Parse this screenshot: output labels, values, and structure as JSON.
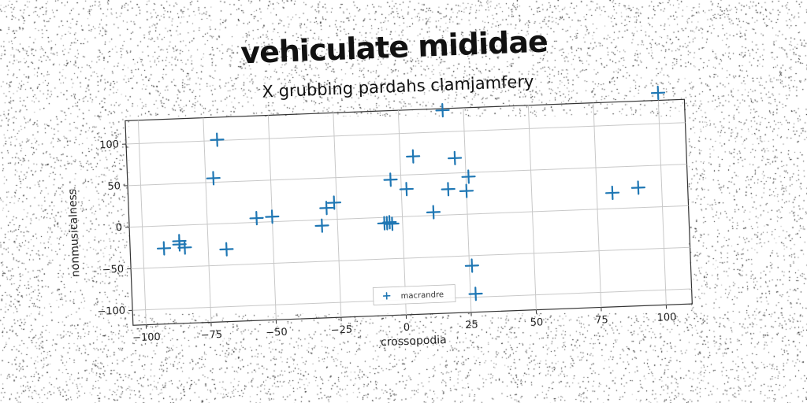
{
  "title": "vehiculate mididae",
  "chart_data": {
    "type": "scatter",
    "title": "X grubbing pardahs clamjamfery",
    "xlabel": "crossopodia",
    "ylabel": "nonmusicalness",
    "xlim": [
      -105,
      110
    ],
    "ylim": [
      -118,
      128
    ],
    "xticks": [
      -100,
      -75,
      -50,
      -25,
      0,
      25,
      50,
      75,
      100
    ],
    "yticks": [
      -100,
      -50,
      0,
      50,
      100
    ],
    "grid": true,
    "legend_position": "bottom-center",
    "series": [
      {
        "name": "macrandre",
        "color": "#1f77b4",
        "marker": "plus",
        "points": [
          [
            -92,
            -27
          ],
          [
            -86,
            -19
          ],
          [
            -86,
            -23
          ],
          [
            -84,
            -27
          ],
          [
            -72,
            55
          ],
          [
            -70,
            101
          ],
          [
            -68,
            -31
          ],
          [
            -56,
            5
          ],
          [
            -50,
            6
          ],
          [
            -31,
            -7
          ],
          [
            -29,
            14
          ],
          [
            -26,
            20
          ],
          [
            -7,
            -7
          ],
          [
            -6,
            -7
          ],
          [
            -4,
            -8
          ],
          [
            -5,
            -6
          ],
          [
            -4,
            45
          ],
          [
            2,
            33
          ],
          [
            5,
            72
          ],
          [
            12,
            4
          ],
          [
            17,
            126
          ],
          [
            18,
            31
          ],
          [
            21,
            68
          ],
          [
            25,
            28
          ],
          [
            26,
            45
          ],
          [
            26,
            -62
          ],
          [
            27,
            -96
          ],
          [
            81,
            19
          ],
          [
            91,
            24
          ],
          [
            100,
            137
          ]
        ]
      }
    ]
  }
}
